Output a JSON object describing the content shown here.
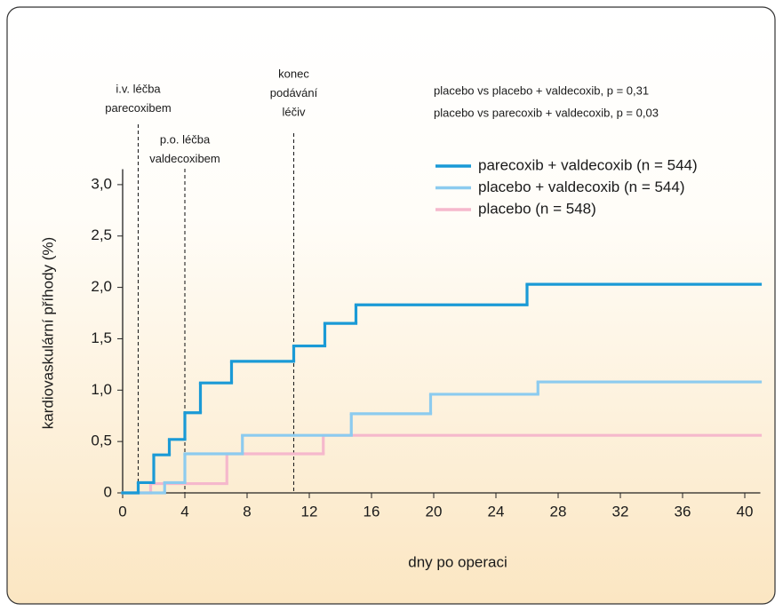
{
  "chart_data": {
    "type": "step",
    "xlabel": "dny po operaci",
    "ylabel": "kardiovaskulární příhody (%)",
    "xlim": [
      0,
      41
    ],
    "ylim": [
      0,
      3.15
    ],
    "xticks": [
      0,
      4,
      8,
      12,
      16,
      20,
      24,
      28,
      32,
      36,
      40
    ],
    "yticks": [
      0,
      {
        "value": 0.5,
        "label": "0,5"
      },
      {
        "value": 1.0,
        "label": "1,0"
      },
      {
        "value": 1.5,
        "label": "1,5"
      },
      {
        "value": 2.0,
        "label": "2,0"
      },
      {
        "value": 2.5,
        "label": "2,5"
      },
      {
        "value": 3.0,
        "label": "3,0"
      }
    ],
    "series": [
      {
        "name": "parecoxib + valdecoxib (n = 544)",
        "color": "#1a9ad6",
        "x": [
          0,
          1,
          2,
          3,
          4,
          5,
          7,
          11,
          13,
          15,
          26,
          41
        ],
        "values": [
          0,
          0.1,
          0.37,
          0.52,
          0.78,
          1.07,
          1.28,
          1.43,
          1.65,
          1.83,
          2.03,
          2.03
        ]
      },
      {
        "name": "placebo + valdecoxib (n = 544)",
        "color": "#8ccbef",
        "x": [
          0,
          2.7,
          4,
          7.7,
          14.7,
          19.8,
          26.7,
          41
        ],
        "values": [
          0,
          0.1,
          0.38,
          0.56,
          0.77,
          0.96,
          1.08,
          1.08
        ]
      },
      {
        "name": "placebo (n = 548)",
        "color": "#f5b8cc",
        "x": [
          0,
          1.8,
          6.7,
          12.9,
          41
        ],
        "values": [
          0,
          0.09,
          0.38,
          0.56,
          0.56
        ]
      }
    ],
    "annotations": [
      {
        "x": 1,
        "lines": [
          "i.v. léčba",
          "parecoxibem"
        ]
      },
      {
        "x": 4,
        "lines": [
          "p.o. léčba",
          "valdecoxibem"
        ]
      },
      {
        "x": 11,
        "lines": [
          "konec",
          "podávání",
          "léčiv"
        ]
      }
    ],
    "stats": [
      "placebo vs placebo + valdecoxib, p = 0,31",
      "placebo vs parecoxib + valdecoxib, p = 0,03"
    ]
  }
}
